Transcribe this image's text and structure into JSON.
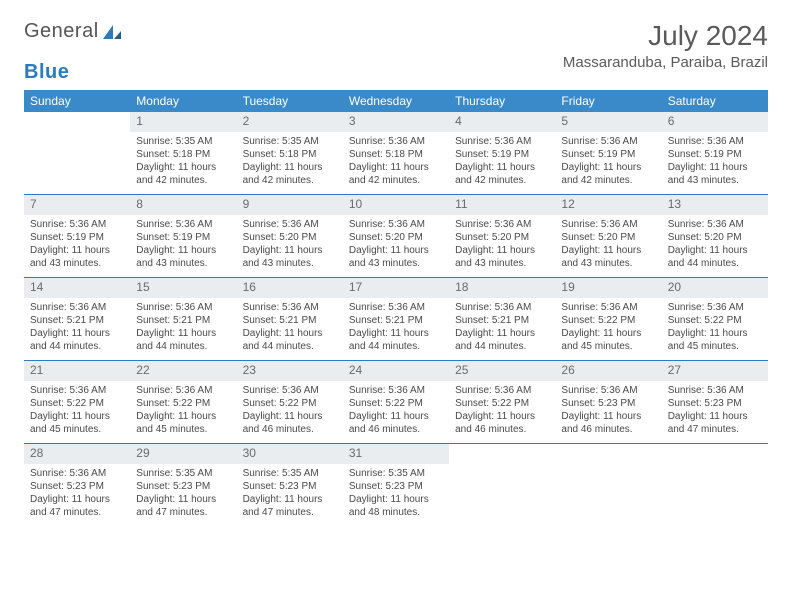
{
  "brand": {
    "word1": "General",
    "word2": "Blue"
  },
  "title": "July 2024",
  "location": "Massaranduba, Paraiba, Brazil",
  "colors": {
    "header_bg": "#3a8ac9",
    "header_text": "#ffffff",
    "daynum_bg": "#e9edf0",
    "daynum_text": "#6a6a6a",
    "cell_text": "#4a4a4a",
    "rule": "#2b7bbf",
    "title_text": "#5a5a5a",
    "logo_gray": "#555555",
    "logo_blue": "#2b7bbf"
  },
  "dow": [
    "Sunday",
    "Monday",
    "Tuesday",
    "Wednesday",
    "Thursday",
    "Friday",
    "Saturday"
  ],
  "weeks": [
    [
      null,
      {
        "n": "1",
        "sr": "Sunrise: 5:35 AM",
        "ss": "Sunset: 5:18 PM",
        "dl": "Daylight: 11 hours and 42 minutes."
      },
      {
        "n": "2",
        "sr": "Sunrise: 5:35 AM",
        "ss": "Sunset: 5:18 PM",
        "dl": "Daylight: 11 hours and 42 minutes."
      },
      {
        "n": "3",
        "sr": "Sunrise: 5:36 AM",
        "ss": "Sunset: 5:18 PM",
        "dl": "Daylight: 11 hours and 42 minutes."
      },
      {
        "n": "4",
        "sr": "Sunrise: 5:36 AM",
        "ss": "Sunset: 5:19 PM",
        "dl": "Daylight: 11 hours and 42 minutes."
      },
      {
        "n": "5",
        "sr": "Sunrise: 5:36 AM",
        "ss": "Sunset: 5:19 PM",
        "dl": "Daylight: 11 hours and 42 minutes."
      },
      {
        "n": "6",
        "sr": "Sunrise: 5:36 AM",
        "ss": "Sunset: 5:19 PM",
        "dl": "Daylight: 11 hours and 43 minutes."
      }
    ],
    [
      {
        "n": "7",
        "sr": "Sunrise: 5:36 AM",
        "ss": "Sunset: 5:19 PM",
        "dl": "Daylight: 11 hours and 43 minutes."
      },
      {
        "n": "8",
        "sr": "Sunrise: 5:36 AM",
        "ss": "Sunset: 5:19 PM",
        "dl": "Daylight: 11 hours and 43 minutes."
      },
      {
        "n": "9",
        "sr": "Sunrise: 5:36 AM",
        "ss": "Sunset: 5:20 PM",
        "dl": "Daylight: 11 hours and 43 minutes."
      },
      {
        "n": "10",
        "sr": "Sunrise: 5:36 AM",
        "ss": "Sunset: 5:20 PM",
        "dl": "Daylight: 11 hours and 43 minutes."
      },
      {
        "n": "11",
        "sr": "Sunrise: 5:36 AM",
        "ss": "Sunset: 5:20 PM",
        "dl": "Daylight: 11 hours and 43 minutes."
      },
      {
        "n": "12",
        "sr": "Sunrise: 5:36 AM",
        "ss": "Sunset: 5:20 PM",
        "dl": "Daylight: 11 hours and 43 minutes."
      },
      {
        "n": "13",
        "sr": "Sunrise: 5:36 AM",
        "ss": "Sunset: 5:20 PM",
        "dl": "Daylight: 11 hours and 44 minutes."
      }
    ],
    [
      {
        "n": "14",
        "sr": "Sunrise: 5:36 AM",
        "ss": "Sunset: 5:21 PM",
        "dl": "Daylight: 11 hours and 44 minutes."
      },
      {
        "n": "15",
        "sr": "Sunrise: 5:36 AM",
        "ss": "Sunset: 5:21 PM",
        "dl": "Daylight: 11 hours and 44 minutes."
      },
      {
        "n": "16",
        "sr": "Sunrise: 5:36 AM",
        "ss": "Sunset: 5:21 PM",
        "dl": "Daylight: 11 hours and 44 minutes."
      },
      {
        "n": "17",
        "sr": "Sunrise: 5:36 AM",
        "ss": "Sunset: 5:21 PM",
        "dl": "Daylight: 11 hours and 44 minutes."
      },
      {
        "n": "18",
        "sr": "Sunrise: 5:36 AM",
        "ss": "Sunset: 5:21 PM",
        "dl": "Daylight: 11 hours and 44 minutes."
      },
      {
        "n": "19",
        "sr": "Sunrise: 5:36 AM",
        "ss": "Sunset: 5:22 PM",
        "dl": "Daylight: 11 hours and 45 minutes."
      },
      {
        "n": "20",
        "sr": "Sunrise: 5:36 AM",
        "ss": "Sunset: 5:22 PM",
        "dl": "Daylight: 11 hours and 45 minutes."
      }
    ],
    [
      {
        "n": "21",
        "sr": "Sunrise: 5:36 AM",
        "ss": "Sunset: 5:22 PM",
        "dl": "Daylight: 11 hours and 45 minutes."
      },
      {
        "n": "22",
        "sr": "Sunrise: 5:36 AM",
        "ss": "Sunset: 5:22 PM",
        "dl": "Daylight: 11 hours and 45 minutes."
      },
      {
        "n": "23",
        "sr": "Sunrise: 5:36 AM",
        "ss": "Sunset: 5:22 PM",
        "dl": "Daylight: 11 hours and 46 minutes."
      },
      {
        "n": "24",
        "sr": "Sunrise: 5:36 AM",
        "ss": "Sunset: 5:22 PM",
        "dl": "Daylight: 11 hours and 46 minutes."
      },
      {
        "n": "25",
        "sr": "Sunrise: 5:36 AM",
        "ss": "Sunset: 5:22 PM",
        "dl": "Daylight: 11 hours and 46 minutes."
      },
      {
        "n": "26",
        "sr": "Sunrise: 5:36 AM",
        "ss": "Sunset: 5:23 PM",
        "dl": "Daylight: 11 hours and 46 minutes."
      },
      {
        "n": "27",
        "sr": "Sunrise: 5:36 AM",
        "ss": "Sunset: 5:23 PM",
        "dl": "Daylight: 11 hours and 47 minutes."
      }
    ],
    [
      {
        "n": "28",
        "sr": "Sunrise: 5:36 AM",
        "ss": "Sunset: 5:23 PM",
        "dl": "Daylight: 11 hours and 47 minutes."
      },
      {
        "n": "29",
        "sr": "Sunrise: 5:35 AM",
        "ss": "Sunset: 5:23 PM",
        "dl": "Daylight: 11 hours and 47 minutes."
      },
      {
        "n": "30",
        "sr": "Sunrise: 5:35 AM",
        "ss": "Sunset: 5:23 PM",
        "dl": "Daylight: 11 hours and 47 minutes."
      },
      {
        "n": "31",
        "sr": "Sunrise: 5:35 AM",
        "ss": "Sunset: 5:23 PM",
        "dl": "Daylight: 11 hours and 48 minutes."
      },
      null,
      null,
      null
    ]
  ]
}
